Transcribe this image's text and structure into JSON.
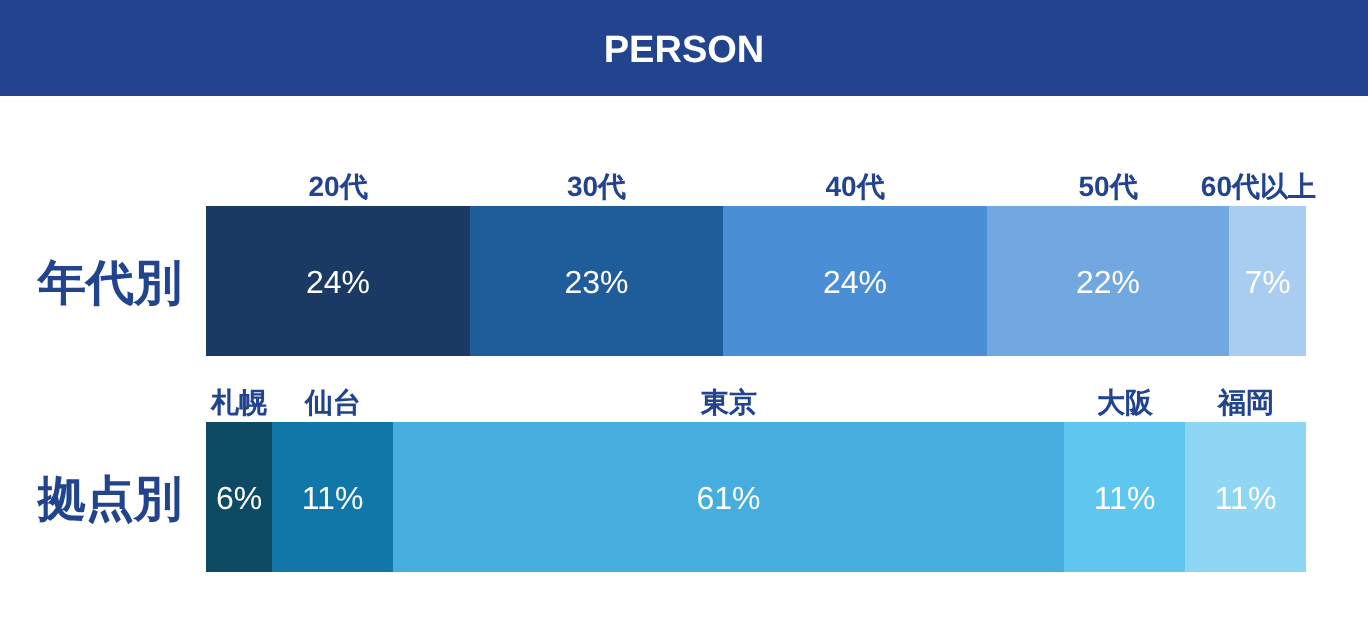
{
  "chart_data": [
    {
      "type": "bar",
      "title": "PERSON",
      "orientation": "horizontal",
      "stacked": true,
      "categories": [
        "年代別"
      ],
      "xlim": [
        0,
        100
      ],
      "tick_labels": false,
      "data_labels": true,
      "series": [
        {
          "name": "20代",
          "color": "#1b3a63",
          "values": [
            24
          ],
          "value_labels": [
            "24%"
          ]
        },
        {
          "name": "30代",
          "color": "#1f5c9a",
          "values": [
            23
          ],
          "value_labels": [
            "23%"
          ]
        },
        {
          "name": "40代",
          "color": "#4a8fd6",
          "values": [
            24
          ],
          "value_labels": [
            "24%"
          ]
        },
        {
          "name": "50代",
          "color": "#72a8e0",
          "values": [
            22
          ],
          "value_labels": [
            "22%"
          ]
        },
        {
          "name": "60代以上",
          "color": "#a9cdf0",
          "values": [
            7
          ],
          "value_labels": [
            "7%"
          ]
        }
      ]
    },
    {
      "type": "bar",
      "orientation": "horizontal",
      "stacked": true,
      "categories": [
        "拠点別"
      ],
      "xlim": [
        0,
        100
      ],
      "tick_labels": false,
      "data_labels": true,
      "series": [
        {
          "name": "札幌",
          "color": "#0d4a63",
          "values": [
            6
          ],
          "value_labels": [
            "6%"
          ]
        },
        {
          "name": "仙台",
          "color": "#1177a8",
          "values": [
            11
          ],
          "value_labels": [
            "11%"
          ]
        },
        {
          "name": "東京",
          "color": "#45aedf",
          "values": [
            61
          ],
          "value_labels": [
            "61%"
          ]
        },
        {
          "name": "大阪",
          "color": "#5ec6ef",
          "values": [
            11
          ],
          "value_labels": [
            "11%"
          ]
        },
        {
          "name": "福岡",
          "color": "#8fd6f4",
          "values": [
            11
          ],
          "value_labels": [
            "11%"
          ]
        }
      ]
    }
  ]
}
